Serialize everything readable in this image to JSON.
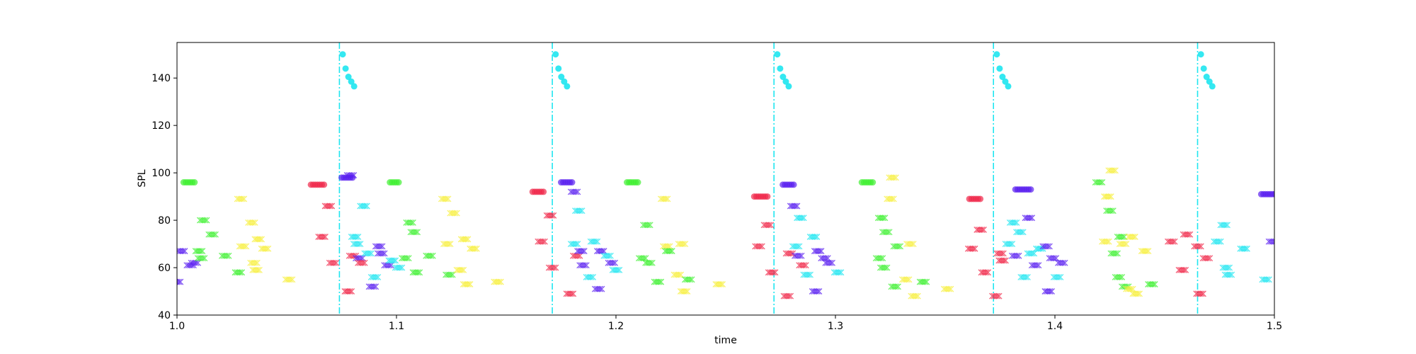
{
  "chart_data": {
    "type": "scatter",
    "title": "",
    "xlabel": "time",
    "ylabel": "SPL",
    "xlim": [
      1.0,
      1.5
    ],
    "ylim": [
      40,
      155
    ],
    "xticks": [
      1.0,
      1.1,
      1.2,
      1.3,
      1.4,
      1.5
    ],
    "xtick_labels": [
      "1.0",
      "1.1",
      "1.2",
      "1.3",
      "1.4",
      "1.5"
    ],
    "yticks": [
      40,
      60,
      80,
      100,
      120,
      140
    ],
    "ytick_labels": [
      "40",
      "60",
      "80",
      "100",
      "120",
      "140"
    ],
    "grid": false,
    "colors": {
      "red": "#f0284a",
      "blue": "#5a1ff0",
      "green": "#3ef030",
      "yellow": "#f7ef3c",
      "cyan": "#1ee6f0"
    },
    "vertical_lines": {
      "color": "#1ee6f0",
      "style": "dash-dot",
      "x": [
        1.074,
        1.171,
        1.272,
        1.372,
        1.465
      ]
    },
    "onset_markers": {
      "color": "#1ee6f0",
      "marker": "circle",
      "points": [
        [
          1.0755,
          150
        ],
        [
          1.0768,
          144
        ],
        [
          1.0781,
          140.5
        ],
        [
          1.0794,
          138.5
        ],
        [
          1.0807,
          136.5
        ],
        [
          1.1725,
          150
        ],
        [
          1.1738,
          144
        ],
        [
          1.1751,
          140.5
        ],
        [
          1.1764,
          138.5
        ],
        [
          1.1777,
          136.5
        ],
        [
          1.2735,
          150
        ],
        [
          1.2748,
          144
        ],
        [
          1.2761,
          140.5
        ],
        [
          1.2774,
          138.5
        ],
        [
          1.2787,
          136.5
        ],
        [
          1.3735,
          150
        ],
        [
          1.3748,
          144
        ],
        [
          1.3761,
          140.5
        ],
        [
          1.3774,
          138.5
        ],
        [
          1.3787,
          136.5
        ],
        [
          1.4665,
          150
        ],
        [
          1.4678,
          144
        ],
        [
          1.4691,
          140.5
        ],
        [
          1.4704,
          138.5
        ],
        [
          1.4717,
          136.5
        ]
      ]
    },
    "circle_segments": [
      {
        "x": [
          1.003,
          1.008
        ],
        "y": 96,
        "color": "green"
      },
      {
        "x": [
          1.061,
          1.067
        ],
        "y": 95,
        "color": "red"
      },
      {
        "x": [
          1.075,
          1.08
        ],
        "y": 98,
        "color": "blue"
      },
      {
        "x": [
          1.097,
          1.101
        ],
        "y": 96,
        "color": "green"
      },
      {
        "x": [
          1.162,
          1.167
        ],
        "y": 92,
        "color": "red"
      },
      {
        "x": [
          1.175,
          1.18
        ],
        "y": 96,
        "color": "blue"
      },
      {
        "x": [
          1.205,
          1.21
        ],
        "y": 96,
        "color": "green"
      },
      {
        "x": [
          1.263,
          1.269
        ],
        "y": 90,
        "color": "red"
      },
      {
        "x": [
          1.276,
          1.281
        ],
        "y": 95,
        "color": "blue"
      },
      {
        "x": [
          1.312,
          1.317
        ],
        "y": 96,
        "color": "green"
      },
      {
        "x": [
          1.361,
          1.366
        ],
        "y": 89,
        "color": "red"
      },
      {
        "x": [
          1.382,
          1.389
        ],
        "y": 93,
        "color": "blue"
      },
      {
        "x": [
          1.494,
          1.5
        ],
        "y": 91,
        "color": "blue"
      }
    ],
    "x_markers": [
      {
        "x": 1.0,
        "y": 54,
        "color": "blue"
      },
      {
        "x": 1.002,
        "y": 67,
        "color": "blue"
      },
      {
        "x": 1.006,
        "y": 61,
        "color": "blue"
      },
      {
        "x": 1.008,
        "y": 62,
        "color": "blue"
      },
      {
        "x": 1.01,
        "y": 67,
        "color": "green"
      },
      {
        "x": 1.011,
        "y": 64,
        "color": "green"
      },
      {
        "x": 1.012,
        "y": 80,
        "color": "green"
      },
      {
        "x": 1.016,
        "y": 74,
        "color": "green"
      },
      {
        "x": 1.022,
        "y": 65,
        "color": "green"
      },
      {
        "x": 1.028,
        "y": 58,
        "color": "green"
      },
      {
        "x": 1.029,
        "y": 89,
        "color": "yellow"
      },
      {
        "x": 1.03,
        "y": 69,
        "color": "yellow"
      },
      {
        "x": 1.034,
        "y": 79,
        "color": "yellow"
      },
      {
        "x": 1.035,
        "y": 62,
        "color": "yellow"
      },
      {
        "x": 1.036,
        "y": 59,
        "color": "yellow"
      },
      {
        "x": 1.037,
        "y": 72,
        "color": "yellow"
      },
      {
        "x": 1.04,
        "y": 68,
        "color": "yellow"
      },
      {
        "x": 1.051,
        "y": 55,
        "color": "yellow"
      },
      {
        "x": 1.066,
        "y": 73,
        "color": "red"
      },
      {
        "x": 1.069,
        "y": 86,
        "color": "red"
      },
      {
        "x": 1.071,
        "y": 62,
        "color": "red"
      },
      {
        "x": 1.078,
        "y": 50,
        "color": "red"
      },
      {
        "x": 1.08,
        "y": 65,
        "color": "red"
      },
      {
        "x": 1.079,
        "y": 99,
        "color": "blue"
      },
      {
        "x": 1.081,
        "y": 73,
        "color": "cyan"
      },
      {
        "x": 1.082,
        "y": 70,
        "color": "cyan"
      },
      {
        "x": 1.083,
        "y": 64,
        "color": "blue"
      },
      {
        "x": 1.084,
        "y": 62,
        "color": "red"
      },
      {
        "x": 1.085,
        "y": 86,
        "color": "cyan"
      },
      {
        "x": 1.087,
        "y": 66,
        "color": "cyan"
      },
      {
        "x": 1.089,
        "y": 52,
        "color": "blue"
      },
      {
        "x": 1.09,
        "y": 56,
        "color": "cyan"
      },
      {
        "x": 1.092,
        "y": 69,
        "color": "blue"
      },
      {
        "x": 1.093,
        "y": 66,
        "color": "blue"
      },
      {
        "x": 1.096,
        "y": 61,
        "color": "blue"
      },
      {
        "x": 1.098,
        "y": 63,
        "color": "cyan"
      },
      {
        "x": 1.101,
        "y": 60,
        "color": "cyan"
      },
      {
        "x": 1.104,
        "y": 64,
        "color": "green"
      },
      {
        "x": 1.106,
        "y": 79,
        "color": "green"
      },
      {
        "x": 1.108,
        "y": 75,
        "color": "green"
      },
      {
        "x": 1.109,
        "y": 58,
        "color": "green"
      },
      {
        "x": 1.115,
        "y": 65,
        "color": "green"
      },
      {
        "x": 1.122,
        "y": 89,
        "color": "yellow"
      },
      {
        "x": 1.123,
        "y": 70,
        "color": "yellow"
      },
      {
        "x": 1.124,
        "y": 57,
        "color": "green"
      },
      {
        "x": 1.126,
        "y": 83,
        "color": "yellow"
      },
      {
        "x": 1.129,
        "y": 59,
        "color": "yellow"
      },
      {
        "x": 1.131,
        "y": 72,
        "color": "yellow"
      },
      {
        "x": 1.132,
        "y": 53,
        "color": "yellow"
      },
      {
        "x": 1.135,
        "y": 68,
        "color": "yellow"
      },
      {
        "x": 1.146,
        "y": 54,
        "color": "yellow"
      },
      {
        "x": 1.166,
        "y": 71,
        "color": "red"
      },
      {
        "x": 1.17,
        "y": 82,
        "color": "red"
      },
      {
        "x": 1.171,
        "y": 60,
        "color": "red"
      },
      {
        "x": 1.179,
        "y": 49,
        "color": "red"
      },
      {
        "x": 1.181,
        "y": 92,
        "color": "blue"
      },
      {
        "x": 1.181,
        "y": 70,
        "color": "cyan"
      },
      {
        "x": 1.182,
        "y": 65,
        "color": "red"
      },
      {
        "x": 1.183,
        "y": 84,
        "color": "cyan"
      },
      {
        "x": 1.184,
        "y": 67,
        "color": "blue"
      },
      {
        "x": 1.185,
        "y": 61,
        "color": "blue"
      },
      {
        "x": 1.188,
        "y": 56,
        "color": "cyan"
      },
      {
        "x": 1.19,
        "y": 71,
        "color": "cyan"
      },
      {
        "x": 1.192,
        "y": 51,
        "color": "blue"
      },
      {
        "x": 1.193,
        "y": 67,
        "color": "blue"
      },
      {
        "x": 1.196,
        "y": 65,
        "color": "cyan"
      },
      {
        "x": 1.198,
        "y": 62,
        "color": "blue"
      },
      {
        "x": 1.2,
        "y": 59,
        "color": "cyan"
      },
      {
        "x": 1.212,
        "y": 64,
        "color": "green"
      },
      {
        "x": 1.214,
        "y": 78,
        "color": "green"
      },
      {
        "x": 1.215,
        "y": 62,
        "color": "green"
      },
      {
        "x": 1.219,
        "y": 54,
        "color": "green"
      },
      {
        "x": 1.222,
        "y": 89,
        "color": "yellow"
      },
      {
        "x": 1.223,
        "y": 69,
        "color": "yellow"
      },
      {
        "x": 1.224,
        "y": 67,
        "color": "green"
      },
      {
        "x": 1.228,
        "y": 57,
        "color": "yellow"
      },
      {
        "x": 1.23,
        "y": 70,
        "color": "yellow"
      },
      {
        "x": 1.231,
        "y": 50,
        "color": "yellow"
      },
      {
        "x": 1.233,
        "y": 55,
        "color": "green"
      },
      {
        "x": 1.247,
        "y": 53,
        "color": "yellow"
      },
      {
        "x": 1.265,
        "y": 69,
        "color": "red"
      },
      {
        "x": 1.269,
        "y": 78,
        "color": "red"
      },
      {
        "x": 1.271,
        "y": 58,
        "color": "red"
      },
      {
        "x": 1.278,
        "y": 48,
        "color": "red"
      },
      {
        "x": 1.279,
        "y": 66,
        "color": "red"
      },
      {
        "x": 1.281,
        "y": 86,
        "color": "blue"
      },
      {
        "x": 1.282,
        "y": 69,
        "color": "cyan"
      },
      {
        "x": 1.283,
        "y": 65,
        "color": "blue"
      },
      {
        "x": 1.284,
        "y": 81,
        "color": "cyan"
      },
      {
        "x": 1.285,
        "y": 61,
        "color": "red"
      },
      {
        "x": 1.287,
        "y": 57,
        "color": "cyan"
      },
      {
        "x": 1.29,
        "y": 73,
        "color": "cyan"
      },
      {
        "x": 1.291,
        "y": 50,
        "color": "blue"
      },
      {
        "x": 1.292,
        "y": 67,
        "color": "blue"
      },
      {
        "x": 1.295,
        "y": 64,
        "color": "blue"
      },
      {
        "x": 1.297,
        "y": 62,
        "color": "blue"
      },
      {
        "x": 1.301,
        "y": 58,
        "color": "cyan"
      },
      {
        "x": 1.32,
        "y": 64,
        "color": "green"
      },
      {
        "x": 1.321,
        "y": 81,
        "color": "green"
      },
      {
        "x": 1.322,
        "y": 60,
        "color": "green"
      },
      {
        "x": 1.323,
        "y": 75,
        "color": "green"
      },
      {
        "x": 1.325,
        "y": 89,
        "color": "yellow"
      },
      {
        "x": 1.326,
        "y": 98,
        "color": "yellow"
      },
      {
        "x": 1.327,
        "y": 52,
        "color": "green"
      },
      {
        "x": 1.328,
        "y": 69,
        "color": "green"
      },
      {
        "x": 1.332,
        "y": 55,
        "color": "yellow"
      },
      {
        "x": 1.334,
        "y": 70,
        "color": "yellow"
      },
      {
        "x": 1.336,
        "y": 48,
        "color": "yellow"
      },
      {
        "x": 1.34,
        "y": 54,
        "color": "green"
      },
      {
        "x": 1.351,
        "y": 51,
        "color": "yellow"
      },
      {
        "x": 1.362,
        "y": 68,
        "color": "red"
      },
      {
        "x": 1.366,
        "y": 76,
        "color": "red"
      },
      {
        "x": 1.368,
        "y": 58,
        "color": "red"
      },
      {
        "x": 1.373,
        "y": 48,
        "color": "red"
      },
      {
        "x": 1.375,
        "y": 66,
        "color": "red"
      },
      {
        "x": 1.376,
        "y": 63,
        "color": "red"
      },
      {
        "x": 1.379,
        "y": 70,
        "color": "cyan"
      },
      {
        "x": 1.381,
        "y": 79,
        "color": "cyan"
      },
      {
        "x": 1.382,
        "y": 65,
        "color": "blue"
      },
      {
        "x": 1.384,
        "y": 75,
        "color": "cyan"
      },
      {
        "x": 1.386,
        "y": 56,
        "color": "cyan"
      },
      {
        "x": 1.388,
        "y": 81,
        "color": "blue"
      },
      {
        "x": 1.389,
        "y": 66,
        "color": "cyan"
      },
      {
        "x": 1.391,
        "y": 61,
        "color": "blue"
      },
      {
        "x": 1.393,
        "y": 68,
        "color": "cyan"
      },
      {
        "x": 1.396,
        "y": 69,
        "color": "blue"
      },
      {
        "x": 1.397,
        "y": 50,
        "color": "blue"
      },
      {
        "x": 1.399,
        "y": 64,
        "color": "blue"
      },
      {
        "x": 1.401,
        "y": 56,
        "color": "cyan"
      },
      {
        "x": 1.403,
        "y": 62,
        "color": "blue"
      },
      {
        "x": 1.42,
        "y": 96,
        "color": "green"
      },
      {
        "x": 1.423,
        "y": 71,
        "color": "yellow"
      },
      {
        "x": 1.424,
        "y": 90,
        "color": "yellow"
      },
      {
        "x": 1.425,
        "y": 84,
        "color": "green"
      },
      {
        "x": 1.426,
        "y": 101,
        "color": "yellow"
      },
      {
        "x": 1.427,
        "y": 66,
        "color": "green"
      },
      {
        "x": 1.429,
        "y": 56,
        "color": "green"
      },
      {
        "x": 1.43,
        "y": 73,
        "color": "green"
      },
      {
        "x": 1.431,
        "y": 70,
        "color": "yellow"
      },
      {
        "x": 1.432,
        "y": 52,
        "color": "green"
      },
      {
        "x": 1.434,
        "y": 51,
        "color": "yellow"
      },
      {
        "x": 1.435,
        "y": 73,
        "color": "yellow"
      },
      {
        "x": 1.437,
        "y": 49,
        "color": "yellow"
      },
      {
        "x": 1.441,
        "y": 67,
        "color": "yellow"
      },
      {
        "x": 1.444,
        "y": 53,
        "color": "green"
      },
      {
        "x": 1.453,
        "y": 71,
        "color": "red"
      },
      {
        "x": 1.458,
        "y": 59,
        "color": "red"
      },
      {
        "x": 1.46,
        "y": 74,
        "color": "red"
      },
      {
        "x": 1.465,
        "y": 69,
        "color": "red"
      },
      {
        "x": 1.466,
        "y": 49,
        "color": "red"
      },
      {
        "x": 1.469,
        "y": 64,
        "color": "red"
      },
      {
        "x": 1.474,
        "y": 71,
        "color": "cyan"
      },
      {
        "x": 1.477,
        "y": 78,
        "color": "cyan"
      },
      {
        "x": 1.478,
        "y": 60,
        "color": "cyan"
      },
      {
        "x": 1.479,
        "y": 57,
        "color": "cyan"
      },
      {
        "x": 1.486,
        "y": 68,
        "color": "cyan"
      },
      {
        "x": 1.496,
        "y": 55,
        "color": "cyan"
      },
      {
        "x": 1.499,
        "y": 71,
        "color": "blue"
      }
    ]
  }
}
